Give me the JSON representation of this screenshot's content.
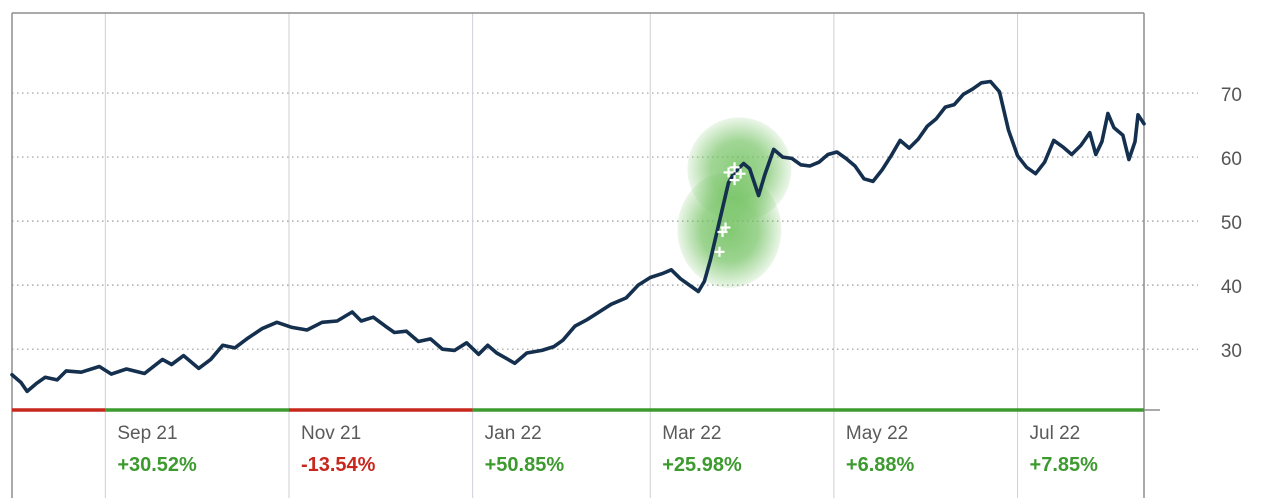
{
  "colors": {
    "line": "#14304e",
    "up": "#3c9a2e",
    "down": "#c8271e",
    "grid": "#9a9a9a",
    "vgrid": "#cfcfd6",
    "frame": "#8e8e8e",
    "highlight": "#6cbf5a",
    "tick_label": "#555555",
    "month_label": "#5a5a5a"
  },
  "chart_data": {
    "type": "line",
    "title": "",
    "xlabel": "",
    "ylabel": "",
    "ylim": [
      20.5,
      82.5
    ],
    "x_range": [
      "2021-08-01",
      "2022-08-12"
    ],
    "y_ticks": [
      30,
      40,
      50,
      60,
      70
    ],
    "y_tick_labels": [
      "30",
      "40",
      "50",
      "60",
      "70"
    ],
    "grid": {
      "horizontal": "dotted",
      "vertical": true
    },
    "months": [
      {
        "label": "Sep 21",
        "date": "2021-09-01",
        "change": "+30.52%",
        "direction": "up"
      },
      {
        "label": "Nov 21",
        "date": "2021-11-01",
        "change": "-13.54%",
        "direction": "down"
      },
      {
        "label": "Jan 22",
        "date": "2022-01-01",
        "change": "+50.85%",
        "direction": "up"
      },
      {
        "label": "Mar 22",
        "date": "2022-03-01",
        "change": "+25.98%",
        "direction": "up"
      },
      {
        "label": "May 22",
        "date": "2022-05-01",
        "change": "+6.88%",
        "direction": "up"
      },
      {
        "label": "Jul 22",
        "date": "2022-07-01",
        "change": "+7.85%",
        "direction": "up"
      }
    ],
    "period_bar": [
      {
        "from": "2021-08-01",
        "to": "2021-09-01",
        "direction": "down"
      },
      {
        "from": "2021-09-01",
        "to": "2021-11-01",
        "direction": "up"
      },
      {
        "from": "2021-11-01",
        "to": "2022-01-01",
        "direction": "down"
      },
      {
        "from": "2022-01-01",
        "to": "2022-08-12",
        "direction": "up"
      }
    ],
    "series": [
      {
        "values": [
          [
            "2021-08-01",
            26.0
          ],
          [
            "2021-08-04",
            24.8
          ],
          [
            "2021-08-06",
            23.4
          ],
          [
            "2021-08-09",
            24.6
          ],
          [
            "2021-08-12",
            25.6
          ],
          [
            "2021-08-16",
            25.2
          ],
          [
            "2021-08-19",
            26.6
          ],
          [
            "2021-08-24",
            26.4
          ],
          [
            "2021-08-30",
            27.3
          ],
          [
            "2021-09-03",
            26.1
          ],
          [
            "2021-09-08",
            26.9
          ],
          [
            "2021-09-14",
            26.2
          ],
          [
            "2021-09-20",
            28.4
          ],
          [
            "2021-09-23",
            27.6
          ],
          [
            "2021-09-27",
            29.0
          ],
          [
            "2021-10-02",
            27.0
          ],
          [
            "2021-10-06",
            28.4
          ],
          [
            "2021-10-10",
            30.6
          ],
          [
            "2021-10-14",
            30.2
          ],
          [
            "2021-10-18",
            31.6
          ],
          [
            "2021-10-23",
            33.2
          ],
          [
            "2021-10-28",
            34.2
          ],
          [
            "2021-11-02",
            33.4
          ],
          [
            "2021-11-07",
            33.0
          ],
          [
            "2021-11-12",
            34.2
          ],
          [
            "2021-11-17",
            34.4
          ],
          [
            "2021-11-22",
            35.8
          ],
          [
            "2021-11-25",
            34.4
          ],
          [
            "2021-11-29",
            35.0
          ],
          [
            "2021-12-03",
            33.6
          ],
          [
            "2021-12-06",
            32.6
          ],
          [
            "2021-12-10",
            32.8
          ],
          [
            "2021-12-14",
            31.2
          ],
          [
            "2021-12-18",
            31.6
          ],
          [
            "2021-12-22",
            30.0
          ],
          [
            "2021-12-26",
            29.8
          ],
          [
            "2021-12-30",
            31.0
          ],
          [
            "2022-01-03",
            29.2
          ],
          [
            "2022-01-06",
            30.6
          ],
          [
            "2022-01-09",
            29.4
          ],
          [
            "2022-01-12",
            28.6
          ],
          [
            "2022-01-15",
            27.8
          ],
          [
            "2022-01-19",
            29.4
          ],
          [
            "2022-01-24",
            29.8
          ],
          [
            "2022-01-28",
            30.4
          ],
          [
            "2022-01-31",
            31.4
          ],
          [
            "2022-02-04",
            33.6
          ],
          [
            "2022-02-08",
            34.6
          ],
          [
            "2022-02-12",
            35.8
          ],
          [
            "2022-02-16",
            37.0
          ],
          [
            "2022-02-21",
            38.0
          ],
          [
            "2022-02-25",
            40.0
          ],
          [
            "2022-03-01",
            41.2
          ],
          [
            "2022-03-05",
            41.8
          ],
          [
            "2022-03-08",
            42.4
          ],
          [
            "2022-03-11",
            41.0
          ],
          [
            "2022-03-14",
            40.0
          ],
          [
            "2022-03-17",
            39.0
          ],
          [
            "2022-03-19",
            40.6
          ],
          [
            "2022-03-21",
            44.0
          ],
          [
            "2022-03-23",
            48.0
          ],
          [
            "2022-03-25",
            52.0
          ],
          [
            "2022-03-27",
            56.0
          ],
          [
            "2022-03-29",
            57.6
          ],
          [
            "2022-04-01",
            59.0
          ],
          [
            "2022-04-03",
            58.2
          ],
          [
            "2022-04-06",
            54.0
          ],
          [
            "2022-04-08",
            57.2
          ],
          [
            "2022-04-11",
            61.2
          ],
          [
            "2022-04-14",
            60.0
          ],
          [
            "2022-04-17",
            59.8
          ],
          [
            "2022-04-20",
            58.8
          ],
          [
            "2022-04-23",
            58.6
          ],
          [
            "2022-04-26",
            59.2
          ],
          [
            "2022-04-29",
            60.4
          ],
          [
            "2022-05-02",
            60.8
          ],
          [
            "2022-05-05",
            59.8
          ],
          [
            "2022-05-08",
            58.6
          ],
          [
            "2022-05-11",
            56.6
          ],
          [
            "2022-05-14",
            56.2
          ],
          [
            "2022-05-17",
            58.0
          ],
          [
            "2022-05-20",
            60.2
          ],
          [
            "2022-05-23",
            62.6
          ],
          [
            "2022-05-26",
            61.4
          ],
          [
            "2022-05-29",
            62.8
          ],
          [
            "2022-06-01",
            64.8
          ],
          [
            "2022-06-04",
            66.0
          ],
          [
            "2022-06-07",
            67.8
          ],
          [
            "2022-06-10",
            68.2
          ],
          [
            "2022-06-13",
            69.8
          ],
          [
            "2022-06-16",
            70.6
          ],
          [
            "2022-06-19",
            71.6
          ],
          [
            "2022-06-22",
            71.8
          ],
          [
            "2022-06-25",
            70.2
          ],
          [
            "2022-06-28",
            64.2
          ],
          [
            "2022-07-01",
            60.2
          ],
          [
            "2022-07-04",
            58.4
          ],
          [
            "2022-07-07",
            57.4
          ],
          [
            "2022-07-10",
            59.2
          ],
          [
            "2022-07-13",
            62.6
          ],
          [
            "2022-07-16",
            61.6
          ],
          [
            "2022-07-19",
            60.4
          ],
          [
            "2022-07-22",
            61.8
          ],
          [
            "2022-07-25",
            63.8
          ],
          [
            "2022-07-27",
            60.4
          ],
          [
            "2022-07-29",
            62.4
          ],
          [
            "2022-07-31",
            66.8
          ],
          [
            "2022-08-02",
            64.6
          ],
          [
            "2022-08-05",
            63.4
          ],
          [
            "2022-08-07",
            59.6
          ],
          [
            "2022-08-09",
            62.4
          ],
          [
            "2022-08-10",
            66.6
          ],
          [
            "2022-08-12",
            65.2
          ]
        ]
      }
    ],
    "event_markers": [
      [
        "2022-03-24",
        45.2
      ],
      [
        "2022-03-25",
        48.3
      ],
      [
        "2022-03-26",
        49.0
      ],
      [
        "2022-03-27",
        57.6
      ],
      [
        "2022-03-29",
        58.4
      ],
      [
        "2022-03-29",
        56.4
      ],
      [
        "2022-03-31",
        57.4
      ]
    ]
  }
}
